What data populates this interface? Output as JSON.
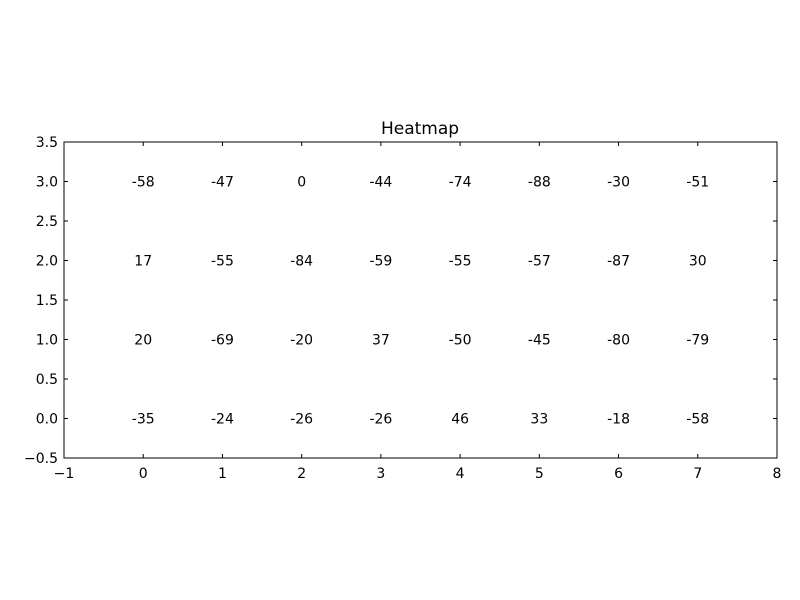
{
  "chart_data": {
    "type": "heatmap",
    "title": "Heatmap",
    "xlabel": "",
    "ylabel": "",
    "xlim": [
      -1,
      8
    ],
    "ylim": [
      3.5,
      -0.5
    ],
    "x_ticks": [
      "−1",
      "0",
      "1",
      "2",
      "3",
      "4",
      "5",
      "6",
      "7",
      "8"
    ],
    "y_ticks": [
      "−0.5",
      "0.0",
      "0.5",
      "1.0",
      "1.5",
      "2.0",
      "2.5",
      "3.0",
      "3.5"
    ],
    "colormap": "summer",
    "value_range": [
      -88,
      46
    ],
    "grid": false,
    "rows": [
      [
        -35,
        -24,
        -26,
        -26,
        46,
        33,
        -18,
        -58
      ],
      [
        20,
        -69,
        -20,
        37,
        -50,
        -45,
        -80,
        -79
      ],
      [
        17,
        -55,
        -84,
        -59,
        -55,
        -57,
        -87,
        30
      ],
      [
        -58,
        -47,
        0,
        -44,
        -74,
        -88,
        -30,
        -51
      ]
    ]
  }
}
